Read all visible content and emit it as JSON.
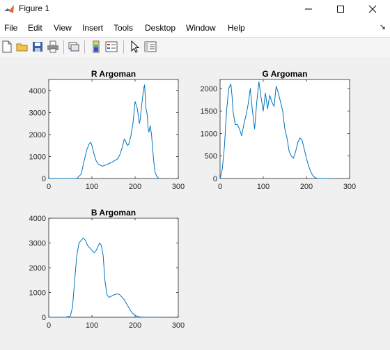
{
  "window": {
    "title": "Figure 1",
    "icon": "matlab-icon"
  },
  "menu": [
    "File",
    "Edit",
    "View",
    "Insert",
    "Tools",
    "Desktop",
    "Window",
    "Help"
  ],
  "menu_overflow": "↘",
  "toolbar": [
    "new-figure-icon",
    "open-file-icon",
    "save-icon",
    "print-icon",
    "link-plot-icon",
    "colorbar-icon",
    "legend-icon",
    "edit-plot-icon",
    "property-inspector-icon"
  ],
  "colors": {
    "line": "#0072BD",
    "figure_bg": "#f0f0f0",
    "axes_bg": "#ffffff"
  },
  "chart_data": [
    {
      "type": "line",
      "title": "R Argoman",
      "xlim": [
        0,
        300
      ],
      "ylim": [
        0,
        4500
      ],
      "xticks": [
        0,
        100,
        200,
        300
      ],
      "yticks": [
        0,
        1000,
        2000,
        3000,
        4000
      ],
      "x": [
        0,
        40,
        65,
        75,
        82,
        88,
        93,
        97,
        100,
        105,
        110,
        115,
        120,
        125,
        130,
        140,
        150,
        160,
        165,
        170,
        175,
        178,
        182,
        185,
        190,
        195,
        200,
        205,
        210,
        212,
        215,
        218,
        220,
        222,
        225,
        228,
        230,
        232,
        235,
        238,
        240,
        243,
        246,
        250,
        255,
        260
      ],
      "y": [
        0,
        0,
        0,
        200,
        800,
        1300,
        1550,
        1650,
        1500,
        1100,
        800,
        650,
        600,
        560,
        600,
        680,
        780,
        900,
        1100,
        1400,
        1800,
        1700,
        1500,
        1550,
        1900,
        2500,
        3500,
        3200,
        2500,
        2700,
        3300,
        3800,
        4100,
        4250,
        3200,
        2900,
        2300,
        2100,
        2400,
        2000,
        1500,
        800,
        300,
        100,
        0,
        0
      ]
    },
    {
      "type": "line",
      "title": "G Argoman",
      "xlim": [
        0,
        300
      ],
      "ylim": [
        0,
        2200
      ],
      "xticks": [
        0,
        100,
        200,
        300
      ],
      "yticks": [
        0,
        500,
        1000,
        1500,
        2000
      ],
      "x": [
        0,
        5,
        10,
        15,
        20,
        25,
        28,
        30,
        35,
        40,
        45,
        50,
        55,
        60,
        65,
        70,
        75,
        80,
        85,
        90,
        95,
        100,
        105,
        110,
        115,
        120,
        125,
        130,
        135,
        140,
        145,
        150,
        155,
        160,
        165,
        170,
        175,
        180,
        185,
        190,
        195,
        200,
        205,
        210,
        215,
        220,
        225,
        230,
        240,
        260
      ],
      "y": [
        0,
        200,
        700,
        1500,
        2000,
        2100,
        1800,
        1500,
        1200,
        1200,
        1100,
        950,
        1200,
        1400,
        1650,
        2000,
        1500,
        1100,
        1700,
        2150,
        1800,
        1500,
        1900,
        1550,
        1850,
        1700,
        1600,
        2050,
        1900,
        1700,
        1500,
        1100,
        900,
        600,
        500,
        450,
        600,
        800,
        900,
        850,
        650,
        450,
        280,
        150,
        60,
        20,
        0,
        0,
        0,
        0
      ]
    },
    {
      "type": "line",
      "title": "B Argoman",
      "xlim": [
        0,
        300
      ],
      "ylim": [
        0,
        4000
      ],
      "xticks": [
        0,
        100,
        200,
        300
      ],
      "yticks": [
        0,
        1000,
        2000,
        3000,
        4000
      ],
      "x": [
        0,
        40,
        50,
        55,
        60,
        65,
        70,
        75,
        80,
        85,
        90,
        95,
        100,
        105,
        110,
        115,
        118,
        122,
        126,
        130,
        135,
        140,
        145,
        150,
        160,
        165,
        170,
        175,
        180,
        185,
        190,
        195,
        200,
        205,
        210,
        220,
        260
      ],
      "y": [
        0,
        0,
        50,
        400,
        1500,
        2500,
        3000,
        3100,
        3200,
        3100,
        2900,
        2800,
        2700,
        2600,
        2700,
        2900,
        3000,
        2900,
        2500,
        1500,
        900,
        800,
        850,
        900,
        950,
        900,
        800,
        700,
        550,
        400,
        250,
        150,
        80,
        40,
        10,
        0,
        0
      ]
    }
  ]
}
